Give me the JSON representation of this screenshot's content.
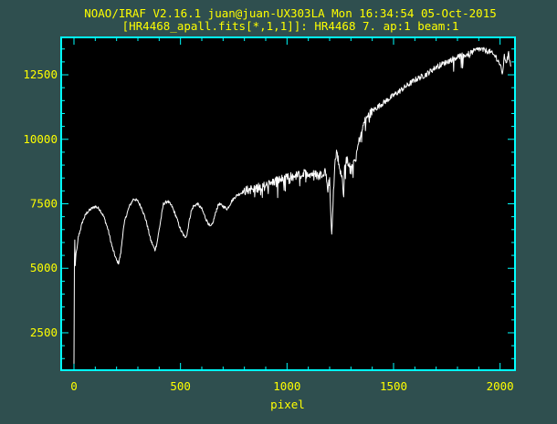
{
  "header": {
    "line1": "NOAO/IRAF V2.16.1 juan@juan-UX303LA Mon 16:34:54 05-Oct-2015",
    "line2": "[HR4468_apall.fits[*,1,1]]: HR4468 7. ap:1 beam:1"
  },
  "colors": {
    "window_bg": "#2f4f4f",
    "plot_bg": "#000000",
    "frame": "#00ffff",
    "text": "#ffff00",
    "trace": "#ffffff"
  },
  "chart_data": {
    "type": "line",
    "xlabel": "pixel",
    "ylabel": "",
    "xlim": [
      -60,
      2070
    ],
    "ylim": [
      1050,
      13950
    ],
    "x_ticks": [
      0,
      500,
      1000,
      1500,
      2000
    ],
    "x_tick_labels": [
      "0",
      "500",
      "1000",
      "1500",
      "2000"
    ],
    "y_ticks": [
      2500,
      5000,
      7500,
      10000,
      12500
    ],
    "y_tick_labels": [
      "2500",
      "5000",
      "7500",
      "10000",
      "12500"
    ],
    "grid": false,
    "series": [
      {
        "x": [
          0,
          2,
          4,
          6,
          8,
          10,
          15,
          20,
          30,
          40,
          50,
          60,
          80,
          100,
          120,
          140,
          160,
          180,
          200,
          210,
          220,
          230,
          240,
          260,
          280,
          300,
          320,
          340,
          360,
          380,
          390,
          400,
          410,
          420,
          440,
          460,
          480,
          500,
          520,
          530,
          540,
          550,
          560,
          580,
          600,
          620,
          640,
          650,
          660,
          670,
          680,
          700,
          720,
          740,
          760,
          780,
          800,
          850,
          900,
          950,
          1000,
          1050,
          1100,
          1150,
          1180,
          1190,
          1200,
          1205,
          1210,
          1220,
          1230,
          1250,
          1260,
          1265,
          1270,
          1280,
          1300,
          1320,
          1330,
          1340,
          1350,
          1360,
          1380,
          1400,
          1450,
          1500,
          1550,
          1600,
          1650,
          1700,
          1750,
          1800,
          1850,
          1900,
          1950,
          1980,
          2000,
          2010,
          2020,
          2030,
          2040,
          2050
        ],
        "y": [
          1300,
          5200,
          6100,
          5100,
          5400,
          5600,
          5800,
          6200,
          6500,
          6800,
          7000,
          7150,
          7300,
          7400,
          7300,
          7000,
          6500,
          5800,
          5300,
          5200,
          5600,
          6400,
          6900,
          7400,
          7700,
          7600,
          7300,
          6800,
          6100,
          5700,
          6000,
          6500,
          7000,
          7500,
          7600,
          7400,
          7000,
          6500,
          6200,
          6300,
          6800,
          7200,
          7400,
          7500,
          7300,
          6900,
          6600,
          6700,
          7000,
          7300,
          7500,
          7400,
          7300,
          7600,
          7800,
          7900,
          8000,
          8100,
          8200,
          8400,
          8500,
          8600,
          8700,
          8600,
          8800,
          8200,
          8500,
          7200,
          6400,
          8300,
          9600,
          8900,
          8500,
          7700,
          8800,
          9200,
          9000,
          9200,
          9600,
          10000,
          10300,
          10600,
          10900,
          11100,
          11400,
          11700,
          12000,
          12300,
          12500,
          12800,
          13000,
          13200,
          13300,
          13500,
          13400,
          13200,
          12900,
          12500,
          13200,
          13000,
          13300,
          12900
        ]
      }
    ]
  }
}
